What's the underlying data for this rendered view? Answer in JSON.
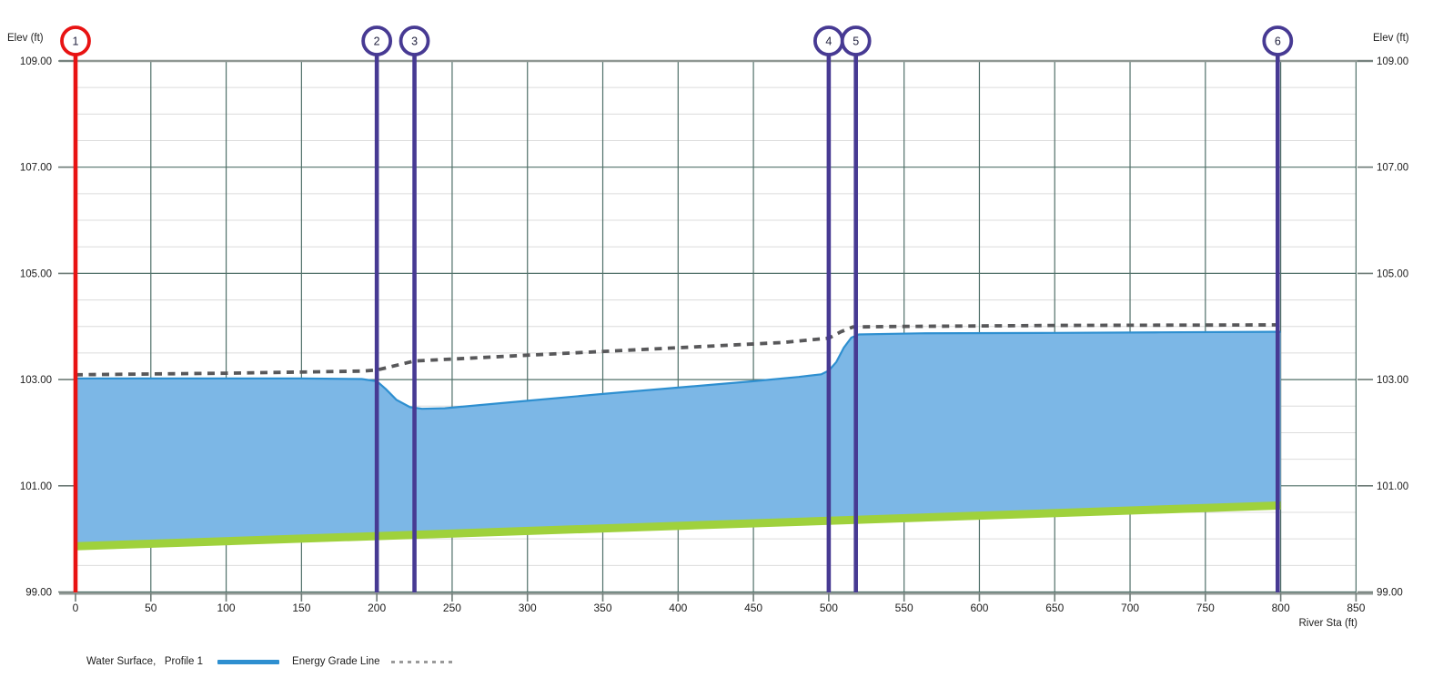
{
  "axes": {
    "left_title": "Elev (ft)",
    "right_title": "Elev (ft)",
    "x_title": "River Sta (ft)",
    "y_ticks": [
      "109.00",
      "107.00",
      "105.00",
      "103.00",
      "101.00",
      "99.00"
    ],
    "x_ticks": [
      "0",
      "50",
      "100",
      "150",
      "200",
      "250",
      "300",
      "350",
      "400",
      "450",
      "500",
      "550",
      "600",
      "650",
      "700",
      "750",
      "800",
      "850"
    ]
  },
  "legend": {
    "water_label": "Water Surface,   Profile 1",
    "egl_label": "Energy Grade Line"
  },
  "chart_data": {
    "type": "area",
    "title": "",
    "xlabel": "River Sta (ft)",
    "ylabel": "Elev (ft)",
    "xlim": [
      0,
      850
    ],
    "ylim": [
      99,
      109
    ],
    "x_major": 50,
    "y_major": 2,
    "y_minor": 0.5,
    "grid": "on",
    "legend_position": "bottom-left",
    "colors": {
      "water_fill": "#7cb7e6",
      "water_line": "#2e8fd0",
      "egl_line": "#58585a",
      "ground_line": "#9fd13c",
      "grid_major": "#507069",
      "grid_minor": "#dcdcdc",
      "axis_gray": "#8f9793",
      "tick_gray": "#6e7b77",
      "station_red": "#e81313",
      "station_purple": "#473a93"
    },
    "series": [
      {
        "name": "Water Surface, Profile 1",
        "role": "water",
        "color": "#2e8fd0",
        "fill": "#7cb7e6",
        "points": [
          [
            0,
            103.02
          ],
          [
            150,
            103.02
          ],
          [
            190,
            103.01
          ],
          [
            200,
            102.97
          ],
          [
            206,
            102.82
          ],
          [
            213,
            102.62
          ],
          [
            222,
            102.48
          ],
          [
            230,
            102.45
          ],
          [
            245,
            102.46
          ],
          [
            300,
            102.6
          ],
          [
            350,
            102.73
          ],
          [
            400,
            102.85
          ],
          [
            450,
            102.97
          ],
          [
            480,
            103.05
          ],
          [
            495,
            103.1
          ],
          [
            500,
            103.17
          ],
          [
            505,
            103.33
          ],
          [
            510,
            103.6
          ],
          [
            515,
            103.79
          ],
          [
            520,
            103.85
          ],
          [
            560,
            103.87
          ],
          [
            650,
            103.88
          ],
          [
            720,
            103.89
          ],
          [
            800,
            103.9
          ]
        ]
      },
      {
        "name": "Energy Grade Line",
        "role": "egl",
        "color": "#58585a",
        "points": [
          [
            0,
            103.09
          ],
          [
            100,
            103.12
          ],
          [
            190,
            103.16
          ],
          [
            200,
            103.18
          ],
          [
            225,
            103.35
          ],
          [
            300,
            103.46
          ],
          [
            400,
            103.6
          ],
          [
            470,
            103.7
          ],
          [
            500,
            103.78
          ],
          [
            508,
            103.9
          ],
          [
            516,
            103.99
          ],
          [
            540,
            104.0
          ],
          [
            650,
            104.02
          ],
          [
            800,
            104.03
          ]
        ]
      },
      {
        "name": "Ground",
        "role": "ground",
        "color": "#9fd13c",
        "points": [
          [
            0,
            99.86
          ],
          [
            800,
            100.63
          ]
        ]
      }
    ],
    "y_tick_values": [
      109,
      107,
      105,
      103,
      101,
      99
    ],
    "x_tick_values": [
      0,
      50,
      100,
      150,
      200,
      250,
      300,
      350,
      400,
      450,
      500,
      550,
      600,
      650,
      700,
      750,
      800,
      850
    ],
    "cross_sections": [
      {
        "label": "1",
        "station": 0,
        "color": "#e81313"
      },
      {
        "label": "2",
        "station": 200,
        "color": "#473a93"
      },
      {
        "label": "3",
        "station": 225,
        "color": "#473a93"
      },
      {
        "label": "4",
        "station": 500,
        "color": "#473a93"
      },
      {
        "label": "5",
        "station": 518,
        "color": "#473a93"
      },
      {
        "label": "6",
        "station": 798,
        "color": "#473a93"
      }
    ]
  }
}
